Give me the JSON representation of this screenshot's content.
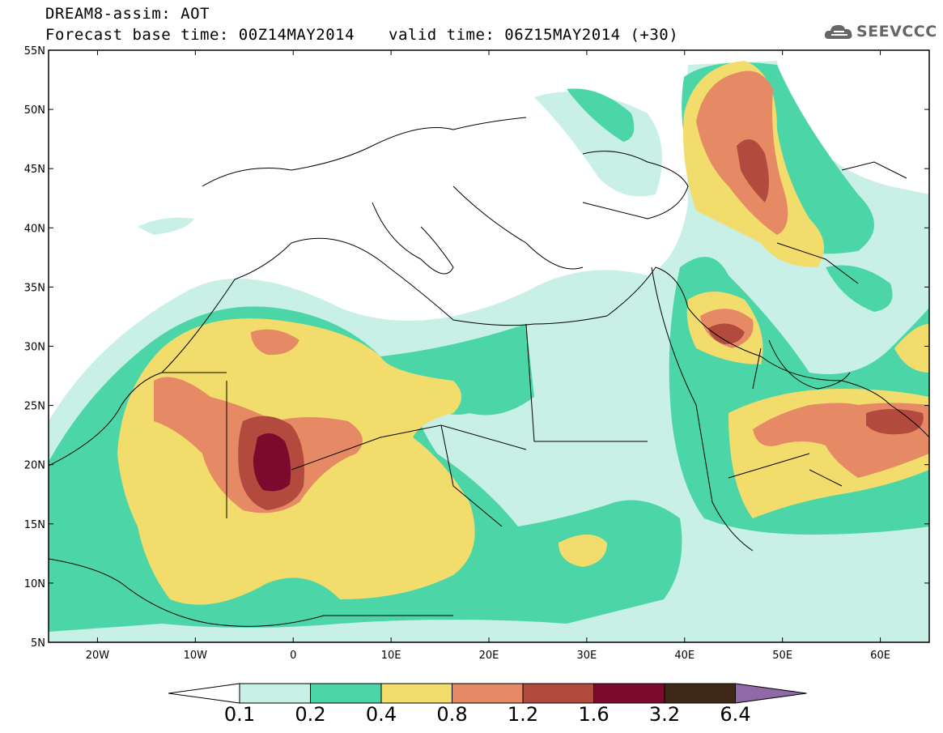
{
  "header": {
    "title": "DREAM8-assim: AOT",
    "base_time": "Forecast base time: 00Z14MAY2014",
    "valid_time": "valid time: 06Z15MAY2014 (+30)",
    "logo_text": "SEEVCCC"
  },
  "map": {
    "lon_range": [
      -25,
      65
    ],
    "lat_range": [
      5,
      55
    ],
    "lon_ticks": [
      "20W",
      "10W",
      "0",
      "10E",
      "20E",
      "30E",
      "40E",
      "50E",
      "60E"
    ],
    "lat_ticks": [
      "55N",
      "50N",
      "45N",
      "40N",
      "35N",
      "30N",
      "25N",
      "20N",
      "15N",
      "10N",
      "5N"
    ]
  },
  "colorbar": {
    "labels": [
      "0.1",
      "0.2",
      "0.4",
      "0.8",
      "1.2",
      "1.6",
      "3.2",
      "6.4"
    ],
    "colors": [
      "#c8f0e6",
      "#4cd6a8",
      "#f2dd6c",
      "#e58a64",
      "#b24a3e",
      "#7d0a2e",
      "#402818",
      "#8f6aa6"
    ]
  }
}
